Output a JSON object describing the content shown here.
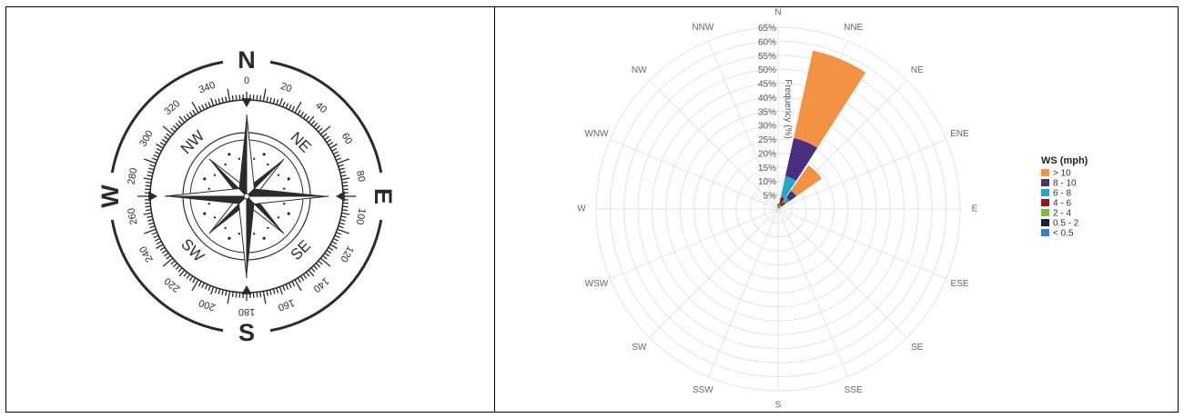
{
  "compass": {
    "cardinals": [
      "N",
      "E",
      "S",
      "W"
    ],
    "intercardinals": [
      "NE",
      "SE",
      "SW",
      "NW"
    ],
    "degree_labels": [
      "0",
      "20",
      "40",
      "60",
      "80",
      "100",
      "120",
      "140",
      "160",
      "180",
      "200",
      "220",
      "240",
      "260",
      "280",
      "300",
      "320",
      "340"
    ],
    "ink_color": "#2b2b2b"
  },
  "chart_data": {
    "type": "polar-bar",
    "directions": [
      "N",
      "NNE",
      "NE",
      "ENE",
      "E",
      "ESE",
      "SE",
      "SSE",
      "S",
      "SSW",
      "SW",
      "WSW",
      "W",
      "WNW",
      "NW",
      "NNW"
    ],
    "radial_ticks": [
      "5%",
      "10%",
      "15%",
      "20%",
      "25%",
      "30%",
      "35%",
      "40%",
      "45%",
      "50%",
      "55%",
      "60%",
      "65%"
    ],
    "radial_max": 65,
    "radial_label": "Frequency (%)",
    "legend_title": "WS (mph)",
    "legend_position": "right",
    "grid": true,
    "series": [
      {
        "name": "< 0.5",
        "color": "#2f7fd0",
        "values": [
          0,
          0.3,
          0.3,
          0,
          0,
          0,
          0,
          0,
          0,
          0,
          0,
          0,
          0,
          0,
          0,
          0
        ]
      },
      {
        "name": "0.5 - 2",
        "color": "#14213d",
        "values": [
          0,
          0.4,
          0.4,
          0,
          0,
          0,
          0,
          0,
          0,
          0,
          0,
          0,
          0,
          0,
          0,
          0
        ]
      },
      {
        "name": "2 - 4",
        "color": "#7cbf3a",
        "values": [
          0.5,
          0.8,
          0.8,
          0,
          0,
          0,
          0,
          0,
          0,
          0,
          0,
          0,
          0,
          0,
          0,
          0
        ]
      },
      {
        "name": "4 - 6",
        "color": "#9a1515",
        "values": [
          1,
          3,
          1.5,
          0,
          0,
          0,
          0,
          0,
          0,
          0,
          0,
          0,
          0,
          0,
          0,
          0
        ]
      },
      {
        "name": "6 - 8",
        "color": "#1fa9c9",
        "values": [
          0.5,
          7.5,
          2,
          0,
          0,
          0,
          0,
          0,
          0,
          0,
          0,
          0,
          0,
          0,
          0,
          0
        ]
      },
      {
        "name": "8 - 10",
        "color": "#4a2e80",
        "values": [
          0,
          14,
          3,
          0,
          0,
          0,
          0,
          0,
          0,
          0,
          0,
          0,
          0,
          0,
          0,
          0
        ]
      },
      {
        "name": "> 10",
        "color": "#f39242",
        "values": [
          0,
          32,
          11,
          0,
          0,
          0,
          0,
          0,
          0,
          0,
          0,
          0,
          0,
          0,
          0,
          0
        ]
      }
    ],
    "legend_order": [
      "> 10",
      "8 - 10",
      "6 - 8",
      "4 - 6",
      "2 - 4",
      "0.5 - 2",
      "< 0.5"
    ]
  }
}
